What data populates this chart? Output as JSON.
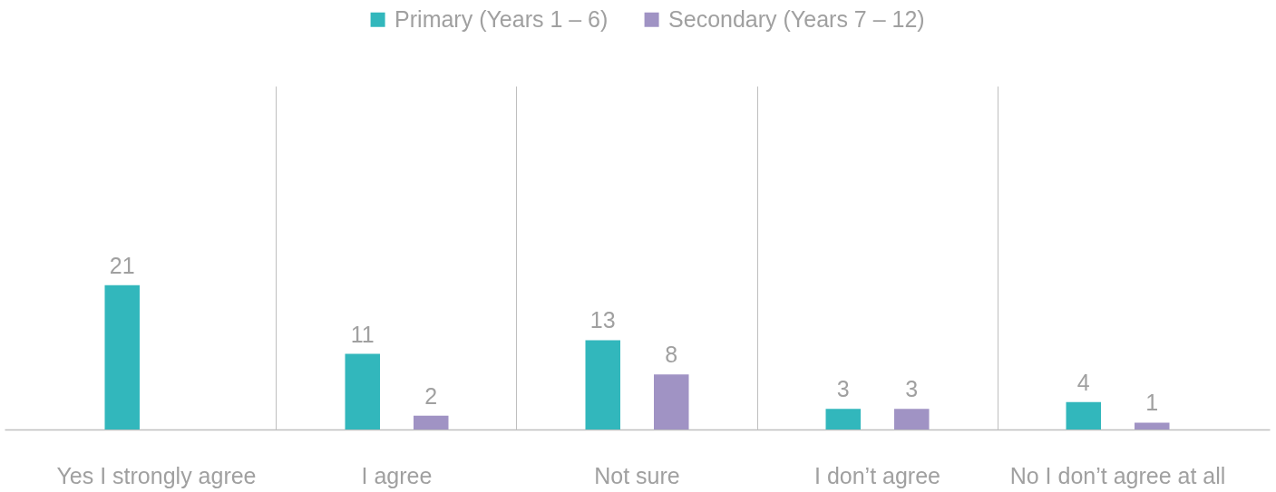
{
  "chart_data": {
    "type": "bar",
    "categories": [
      "Yes I strongly agree",
      "I agree",
      "Not sure",
      "I don’t agree",
      "No I don’t agree at all"
    ],
    "series": [
      {
        "name": "Primary (Years 1 – 6)",
        "color": "#32b7bc",
        "values": [
          21,
          11,
          13,
          3,
          4
        ]
      },
      {
        "name": "Secondary (Years 7 – 12)",
        "color": "#a093c4",
        "values": [
          null,
          2,
          8,
          3,
          1
        ]
      }
    ],
    "ylim": [
      0,
      50
    ],
    "data_labels": true,
    "grid": "x",
    "legend": "top"
  }
}
